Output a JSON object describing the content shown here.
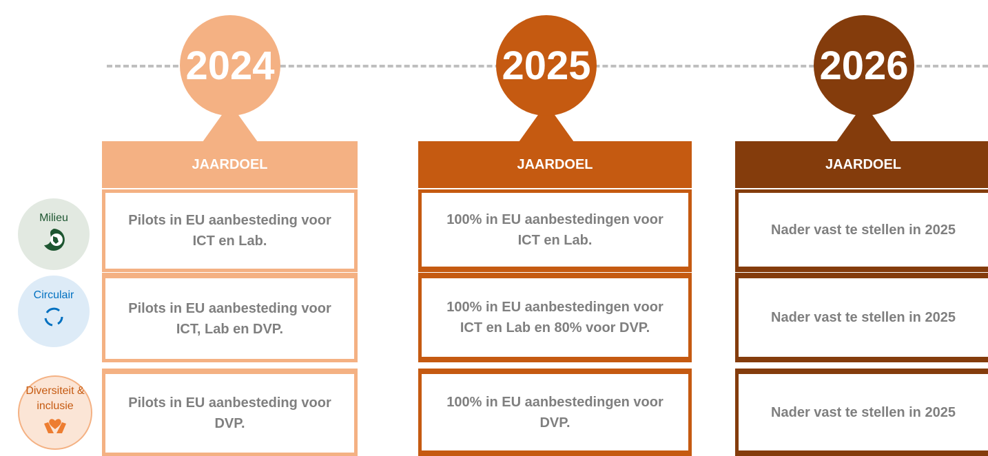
{
  "categories": [
    {
      "label": "Milieu"
    },
    {
      "label": "Circulair"
    },
    {
      "label": "Diversiteit & inclusie"
    }
  ],
  "columns": [
    {
      "year": "2024",
      "header": "JAARDOEL",
      "cells": [
        "Pilots in EU aanbesteding voor ICT en Lab.",
        "Pilots in EU aanbesteding voor ICT, Lab en DVP.",
        "Pilots in EU aanbesteding voor DVP."
      ]
    },
    {
      "year": "2025",
      "header": "JAARDOEL",
      "cells": [
        "100% in EU aanbestedingen voor ICT en Lab.",
        "100% in EU aanbestedingen voor ICT en Lab en 80% voor DVP.",
        "100% in EU aanbestedingen voor DVP."
      ]
    },
    {
      "year": "2026",
      "header": "JAARDOEL",
      "cells": [
        "Nader vast te stellen in 2025",
        "Nader vast te stellen in 2025",
        "Nader vast te stellen in 2025"
      ]
    }
  ]
}
